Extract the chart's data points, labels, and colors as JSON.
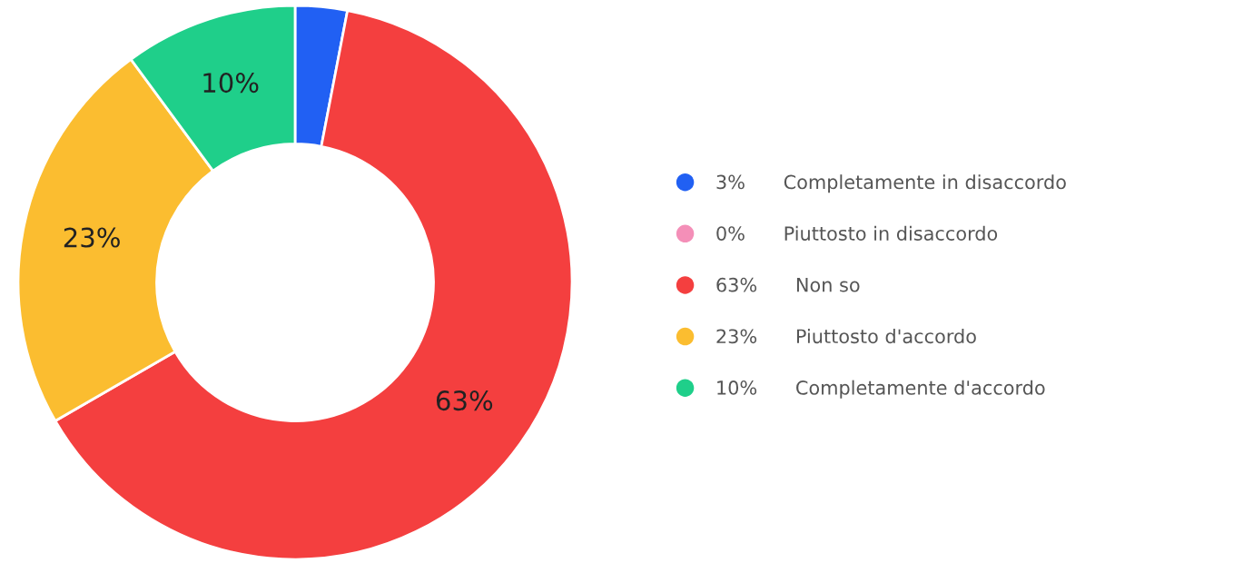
{
  "chart_data": {
    "type": "donut",
    "categories": [
      "Completamente in disaccordo",
      "Piuttosto in disaccordo",
      "Non so",
      "Piuttosto d'accordo",
      "Completamente d'accordo"
    ],
    "values": [
      3,
      0,
      63,
      23,
      10
    ],
    "colors": [
      "#2160f3",
      "#f48fb8",
      "#f43f3f",
      "#fbbd30",
      "#1fcf8a"
    ],
    "value_labels": [
      "3%",
      "0%",
      "63%",
      "23%",
      "10%"
    ],
    "legend": "right"
  }
}
